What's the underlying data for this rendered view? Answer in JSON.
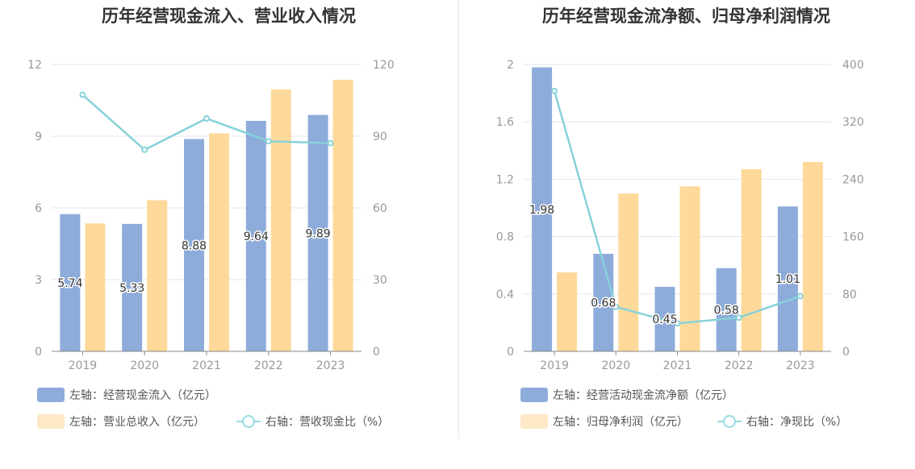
{
  "colors": {
    "bar1": "#8eacda",
    "bar2": "#fed99a",
    "line": "#86d2d9",
    "grid": "#e3e6ef",
    "axis": "#999999"
  },
  "chart_data": [
    {
      "type": "bar",
      "title": "历年经营现金流入、营业收入情况",
      "categories": [
        "2019",
        "2020",
        "2021",
        "2022",
        "2023"
      ],
      "left_ylim": [
        0,
        12
      ],
      "left_ticks": [
        0,
        3,
        6,
        9,
        12
      ],
      "right_ylim": [
        0,
        120
      ],
      "right_ticks": [
        0,
        30,
        60,
        90,
        120
      ],
      "series": [
        {
          "name": "左轴：经营现金流入（亿元）",
          "axis": "left",
          "kind": "bar",
          "values": [
            5.74,
            5.33,
            8.88,
            9.64,
            9.89
          ],
          "labels": [
            "5.74",
            "5.33",
            "8.88",
            "9.64",
            "9.89"
          ]
        },
        {
          "name": "左轴：营业总收入（亿元）",
          "axis": "left",
          "kind": "bar",
          "values": [
            5.35,
            6.32,
            9.12,
            10.96,
            11.36
          ]
        },
        {
          "name": "右轴：营收现金比（%）",
          "axis": "right",
          "kind": "line",
          "values": [
            107.3,
            84.3,
            97.4,
            87.9,
            87.1
          ]
        }
      ]
    },
    {
      "type": "bar",
      "title": "历年经营现金流净额、归母净利润情况",
      "categories": [
        "2019",
        "2020",
        "2021",
        "2022",
        "2023"
      ],
      "left_ylim": [
        0,
        2
      ],
      "left_ticks": [
        "0",
        "0.4",
        "0.8",
        "1.2",
        "1.6",
        "2"
      ],
      "right_ylim": [
        0,
        400
      ],
      "right_ticks": [
        0,
        80,
        160,
        240,
        320,
        400
      ],
      "series": [
        {
          "name": "左轴：经营活动现金流净额（亿元）",
          "axis": "left",
          "kind": "bar",
          "values": [
            1.98,
            0.68,
            0.45,
            0.58,
            1.01
          ],
          "labels": [
            "1.98",
            "0.68",
            "0.45",
            "0.58",
            "1.01"
          ]
        },
        {
          "name": "左轴：归母净利润（亿元）",
          "axis": "left",
          "kind": "bar",
          "values": [
            0.55,
            1.1,
            1.15,
            1.27,
            1.32
          ]
        },
        {
          "name": "右轴：净现比（%）",
          "axis": "right",
          "kind": "line",
          "values": [
            363,
            62,
            39,
            47,
            77
          ]
        }
      ]
    }
  ]
}
